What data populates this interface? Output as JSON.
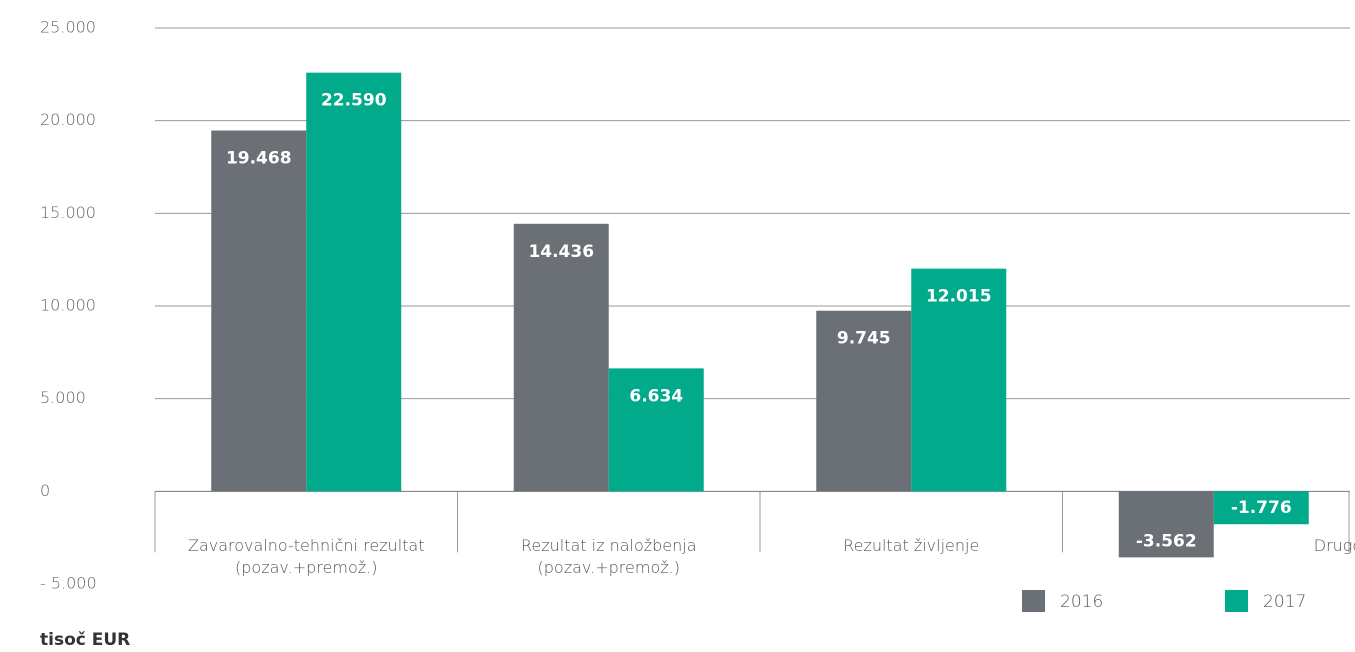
{
  "chart_data": {
    "type": "bar",
    "categories": [
      "Zavarovalno-tehnični rezultat (pozav.+premož.)",
      "Rezultat iz naložbenja (pozav.+premož.)",
      "Rezultat življenje",
      "Drugo*"
    ],
    "series": [
      {
        "name": "2016",
        "color": "#6a7075",
        "values": [
          19468,
          14436,
          9745,
          -3562
        ],
        "value_labels": [
          "19.468",
          "14.436",
          "9.745",
          "-3.562"
        ]
      },
      {
        "name": "2017",
        "color": "#00aa8a",
        "values": [
          22590,
          6634,
          12015,
          -1776
        ],
        "value_labels": [
          "22.590",
          "6.634",
          "12.015",
          "-1.776"
        ]
      }
    ],
    "ylim": [
      -5000,
      25000
    ],
    "yticks": [
      {
        "value": -5000,
        "label": "- 5.000"
      },
      0,
      {
        "value": 5000,
        "label": "5.000"
      },
      {
        "value": 10000,
        "label": "10.000"
      },
      {
        "value": 15000,
        "label": "15.000"
      },
      {
        "value": 20000,
        "label": "20.000"
      },
      {
        "value": 25000,
        "label": "25.000"
      }
    ],
    "grid": true,
    "unit": "tisoč EUR"
  }
}
